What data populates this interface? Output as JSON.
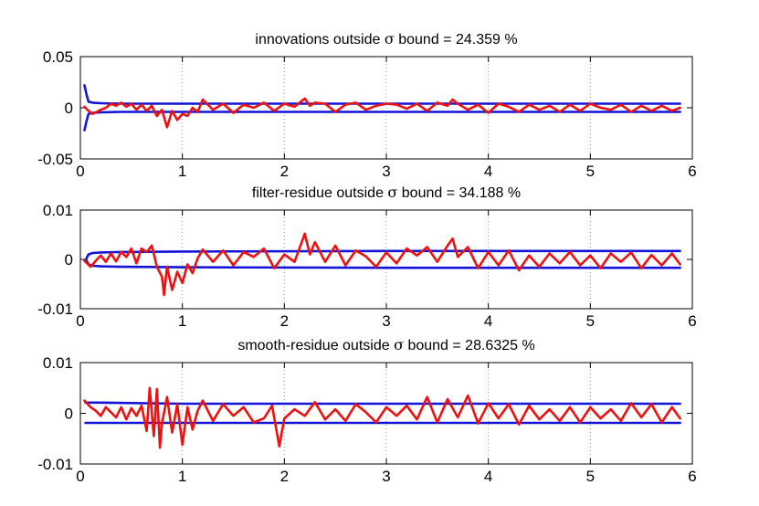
{
  "colors": {
    "bound": "#1414d8",
    "residual": "#ee1111",
    "grid": "#9a9a9a",
    "axes": "#000000"
  },
  "chart_data": [
    {
      "type": "line",
      "title_prefix": "innovations outside ",
      "title_symbol": "σ",
      "title_suffix": " bound = 24.359 %",
      "xlim": [
        0,
        6
      ],
      "ylim": [
        -0.05,
        0.05
      ],
      "xticks": [
        0,
        1,
        2,
        3,
        4,
        5,
        6
      ],
      "yticks": [
        -0.05,
        0,
        0.05
      ],
      "xtick_labels": [
        "0",
        "1",
        "2",
        "3",
        "4",
        "5",
        "6"
      ],
      "ytick_labels": [
        "-0.05",
        "0",
        "0.05"
      ],
      "grid": "vertical dotted",
      "series": [
        {
          "role": "upper sigma bound",
          "color": "#1414d8",
          "x": [
            0.04,
            0.06,
            0.08,
            0.12,
            0.2,
            0.4,
            1.0,
            3.0,
            5.88
          ],
          "values": [
            0.022,
            0.013,
            0.006,
            0.005,
            0.0045,
            0.004,
            0.004,
            0.004,
            0.004
          ]
        },
        {
          "role": "lower sigma bound",
          "color": "#1414d8",
          "x": [
            0.04,
            0.06,
            0.08,
            0.12,
            0.2,
            0.4,
            1.0,
            3.0,
            5.88
          ],
          "values": [
            -0.022,
            -0.013,
            -0.006,
            -0.005,
            -0.0045,
            -0.004,
            -0.004,
            -0.004,
            -0.004
          ]
        },
        {
          "role": "innovations",
          "color": "#ee1111",
          "x": [
            0.04,
            0.08,
            0.12,
            0.16,
            0.2,
            0.25,
            0.3,
            0.35,
            0.4,
            0.45,
            0.5,
            0.55,
            0.6,
            0.65,
            0.7,
            0.75,
            0.8,
            0.85,
            0.9,
            0.95,
            1.0,
            1.05,
            1.1,
            1.15,
            1.2,
            1.3,
            1.4,
            1.5,
            1.6,
            1.7,
            1.8,
            1.9,
            2.0,
            2.1,
            2.2,
            2.25,
            2.3,
            2.4,
            2.5,
            2.6,
            2.7,
            2.8,
            2.9,
            3.0,
            3.1,
            3.2,
            3.3,
            3.4,
            3.5,
            3.6,
            3.65,
            3.7,
            3.8,
            3.9,
            4.0,
            4.1,
            4.2,
            4.3,
            4.4,
            4.5,
            4.6,
            4.7,
            4.8,
            4.9,
            5.0,
            5.1,
            5.2,
            5.3,
            5.4,
            5.5,
            5.6,
            5.7,
            5.8,
            5.88
          ],
          "values": [
            0.001,
            -0.003,
            -0.006,
            -0.004,
            -0.002,
            0.0,
            0.004,
            0.002,
            0.005,
            0.001,
            0.004,
            -0.002,
            0.003,
            -0.003,
            0.002,
            -0.008,
            -0.002,
            -0.019,
            -0.003,
            -0.012,
            -0.006,
            -0.008,
            0.0,
            -0.004,
            0.008,
            -0.002,
            0.004,
            -0.005,
            0.003,
            0.0,
            0.005,
            -0.003,
            0.004,
            0.001,
            0.009,
            0.002,
            0.005,
            0.004,
            -0.004,
            0.003,
            0.005,
            -0.002,
            0.002,
            0.004,
            0.003,
            -0.001,
            0.004,
            -0.003,
            0.005,
            0.002,
            0.008,
            0.004,
            -0.002,
            0.003,
            -0.005,
            0.004,
            0.001,
            -0.004,
            0.003,
            -0.002,
            0.002,
            -0.004,
            0.003,
            -0.003,
            0.004,
            0.0,
            -0.002,
            0.003,
            -0.004,
            0.002,
            -0.003,
            0.002,
            -0.003,
            0.0
          ]
        }
      ]
    },
    {
      "type": "line",
      "title_prefix": "filter-residue outside ",
      "title_symbol": "σ",
      "title_suffix": " bound = 34.188 %",
      "xlim": [
        0,
        6
      ],
      "ylim": [
        -0.01,
        0.01
      ],
      "xticks": [
        0,
        1,
        2,
        3,
        4,
        5,
        6
      ],
      "yticks": [
        -0.01,
        0,
        0.01
      ],
      "xtick_labels": [
        "0",
        "1",
        "2",
        "3",
        "4",
        "5",
        "6"
      ],
      "ytick_labels": [
        "-0.01",
        "0",
        "0.01"
      ],
      "grid": "vertical dotted",
      "series": [
        {
          "role": "upper sigma bound",
          "color": "#1414d8",
          "x": [
            0.06,
            0.08,
            0.12,
            0.2,
            0.4,
            1.0,
            3.0,
            5.88
          ],
          "values": [
            0.0002,
            0.001,
            0.0013,
            0.0014,
            0.0015,
            0.0016,
            0.0017,
            0.0017
          ]
        },
        {
          "role": "lower sigma bound",
          "color": "#1414d8",
          "x": [
            0.06,
            0.08,
            0.12,
            0.2,
            0.4,
            1.0,
            3.0,
            5.88
          ],
          "values": [
            -0.0002,
            -0.001,
            -0.0013,
            -0.0014,
            -0.0015,
            -0.0016,
            -0.0017,
            -0.0017
          ]
        },
        {
          "role": "filter residue",
          "color": "#ee1111",
          "x": [
            0.04,
            0.1,
            0.15,
            0.2,
            0.25,
            0.3,
            0.35,
            0.4,
            0.45,
            0.5,
            0.55,
            0.6,
            0.65,
            0.7,
            0.75,
            0.8,
            0.82,
            0.85,
            0.9,
            0.95,
            1.0,
            1.05,
            1.1,
            1.15,
            1.2,
            1.3,
            1.4,
            1.5,
            1.6,
            1.7,
            1.8,
            1.9,
            2.0,
            2.1,
            2.2,
            2.25,
            2.3,
            2.4,
            2.5,
            2.6,
            2.7,
            2.8,
            2.9,
            3.0,
            3.1,
            3.2,
            3.3,
            3.4,
            3.5,
            3.6,
            3.65,
            3.7,
            3.8,
            3.9,
            4.0,
            4.1,
            4.2,
            4.3,
            4.4,
            4.5,
            4.6,
            4.7,
            4.8,
            4.9,
            5.0,
            5.1,
            5.2,
            5.3,
            5.4,
            5.5,
            5.6,
            5.7,
            5.8,
            5.88
          ],
          "values": [
            -0.0003,
            -0.0015,
            -0.0003,
            0.0008,
            -0.0005,
            0.0012,
            -0.0004,
            0.0015,
            0.0005,
            0.0022,
            -0.0008,
            0.0022,
            0.0015,
            0.0028,
            -0.0015,
            -0.0035,
            -0.0072,
            -0.0015,
            -0.0062,
            -0.0025,
            -0.0048,
            -0.001,
            -0.0028,
            0.0002,
            0.002,
            -0.0005,
            0.0018,
            -0.0012,
            0.0015,
            0.0005,
            0.0022,
            -0.0018,
            0.001,
            -0.0005,
            0.0052,
            0.001,
            0.0035,
            -0.0005,
            0.0028,
            -0.0012,
            0.0018,
            0.0006,
            -0.0015,
            0.0014,
            -0.0008,
            0.0022,
            0.0008,
            0.0025,
            -0.0005,
            0.0028,
            0.0042,
            0.0005,
            0.0025,
            -0.0018,
            0.0015,
            -0.0012,
            0.0018,
            -0.0022,
            0.0008,
            -0.0015,
            0.0012,
            -0.0008,
            0.0015,
            -0.0012,
            0.0008,
            -0.0018,
            0.0012,
            -0.0005,
            0.0014,
            -0.0018,
            0.0009,
            -0.0012,
            0.0012,
            -0.001
          ]
        }
      ]
    },
    {
      "type": "line",
      "title_prefix": "smooth-residue outside ",
      "title_symbol": "σ",
      "title_suffix": " bound = 28.6325 %",
      "xlim": [
        0,
        6
      ],
      "ylim": [
        -0.01,
        0.01
      ],
      "xticks": [
        0,
        1,
        2,
        3,
        4,
        5,
        6
      ],
      "yticks": [
        -0.01,
        0,
        0.01
      ],
      "xtick_labels": [
        "0",
        "1",
        "2",
        "3",
        "4",
        "5",
        "6"
      ],
      "ytick_labels": [
        "-0.01",
        "0",
        "0.01"
      ],
      "grid": "vertical dotted",
      "series": [
        {
          "role": "upper sigma bound",
          "color": "#1414d8",
          "x": [
            0.05,
            0.2,
            1.0,
            3.0,
            5.88
          ],
          "values": [
            0.0021,
            0.0021,
            0.0019,
            0.0019,
            0.0019
          ]
        },
        {
          "role": "lower sigma bound",
          "color": "#1414d8",
          "x": [
            0.05,
            0.2,
            1.0,
            3.0,
            5.88
          ],
          "values": [
            -0.0019,
            -0.0019,
            -0.0019,
            -0.0019,
            -0.0019
          ]
        },
        {
          "role": "smooth residue",
          "color": "#ee1111",
          "x": [
            0.04,
            0.1,
            0.15,
            0.2,
            0.25,
            0.3,
            0.35,
            0.4,
            0.45,
            0.5,
            0.55,
            0.6,
            0.65,
            0.68,
            0.72,
            0.75,
            0.78,
            0.8,
            0.85,
            0.9,
            0.95,
            1.0,
            1.05,
            1.1,
            1.15,
            1.2,
            1.3,
            1.4,
            1.5,
            1.6,
            1.7,
            1.8,
            1.88,
            1.95,
            2.0,
            2.1,
            2.2,
            2.3,
            2.4,
            2.5,
            2.6,
            2.7,
            2.8,
            2.9,
            3.0,
            3.1,
            3.2,
            3.3,
            3.4,
            3.5,
            3.6,
            3.7,
            3.8,
            3.9,
            4.0,
            4.1,
            4.2,
            4.3,
            4.4,
            4.5,
            4.6,
            4.7,
            4.8,
            4.9,
            5.0,
            5.1,
            5.2,
            5.3,
            5.4,
            5.5,
            5.6,
            5.7,
            5.8,
            5.88
          ],
          "values": [
            0.0025,
            0.0012,
            0.0005,
            -0.0005,
            0.0012,
            0.0002,
            -0.0008,
            0.0012,
            -0.0012,
            0.001,
            -0.0005,
            0.0015,
            -0.0035,
            0.005,
            -0.0045,
            0.0048,
            -0.0068,
            -0.002,
            0.0032,
            -0.0038,
            0.0018,
            -0.0062,
            0.0012,
            -0.0032,
            0.0005,
            0.0025,
            -0.0015,
            0.0018,
            -0.0005,
            0.0012,
            -0.0018,
            -0.001,
            0.0015,
            -0.0065,
            -0.001,
            0.0008,
            -0.0005,
            0.0022,
            -0.0012,
            0.0008,
            -0.0015,
            0.0018,
            0.0002,
            -0.0018,
            0.0012,
            -0.0005,
            0.0015,
            -0.0012,
            0.0032,
            -0.0018,
            0.0028,
            -0.0008,
            0.0035,
            -0.002,
            0.002,
            -0.001,
            0.0018,
            -0.0022,
            0.0015,
            -0.0012,
            0.0008,
            -0.0015,
            0.0012,
            -0.0018,
            0.0012,
            -0.001,
            0.0008,
            -0.0015,
            0.002,
            -0.0008,
            0.0018,
            -0.0018,
            0.0012,
            -0.001
          ]
        }
      ]
    }
  ]
}
